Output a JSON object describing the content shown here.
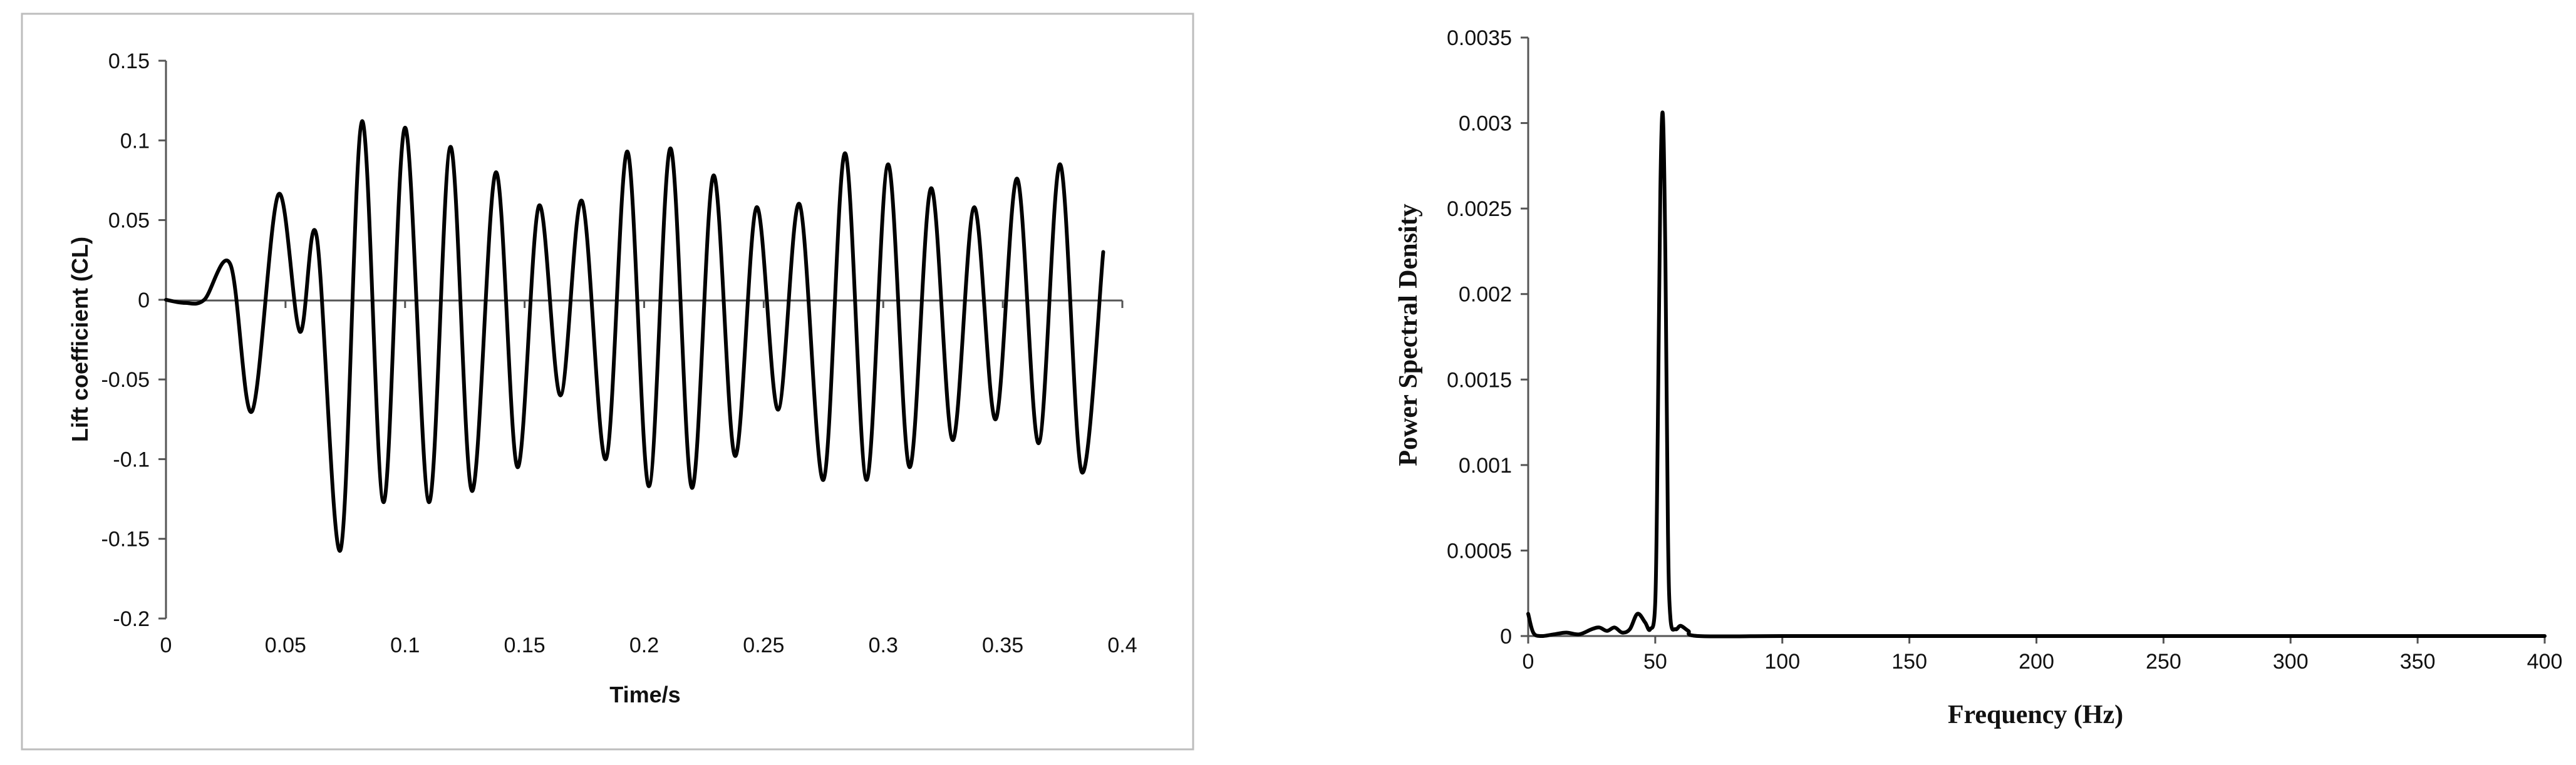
{
  "chart_data": [
    {
      "type": "line",
      "title": "",
      "xlabel": "Time/s",
      "ylabel": "Lift coefficient (CL)",
      "xlim": [
        0,
        0.4
      ],
      "ylim": [
        -0.2,
        0.15
      ],
      "xticks": [
        "0",
        "0.05",
        "0.1",
        "0.15",
        "0.2",
        "0.25",
        "0.3",
        "0.35",
        "0.4"
      ],
      "yticks": [
        "-0.2",
        "-0.15",
        "-0.1",
        "-0.05",
        "0",
        "0.05",
        "0.1",
        "0.15"
      ],
      "grid": false,
      "legend": "none",
      "series": [
        {
          "color": "#000000",
          "points": [
            [
              0,
              0
            ],
            [
              0.008,
              -0.002
            ],
            [
              0.016,
              0.0
            ],
            [
              0.027,
              0.022
            ],
            [
              0.036,
              -0.07
            ],
            [
              0.047,
              0.066
            ],
            [
              0.056,
              -0.02
            ],
            [
              0.063,
              0.04
            ],
            [
              0.073,
              -0.157
            ],
            [
              0.082,
              0.112
            ],
            [
              0.091,
              -0.127
            ],
            [
              0.1,
              0.108
            ],
            [
              0.11,
              -0.127
            ],
            [
              0.119,
              0.096
            ],
            [
              0.128,
              -0.12
            ],
            [
              0.138,
              0.08
            ],
            [
              0.147,
              -0.105
            ],
            [
              0.156,
              0.059
            ],
            [
              0.165,
              -0.06
            ],
            [
              0.174,
              0.062
            ],
            [
              0.184,
              -0.1
            ],
            [
              0.193,
              0.093
            ],
            [
              0.202,
              -0.117
            ],
            [
              0.211,
              0.095
            ],
            [
              0.22,
              -0.118
            ],
            [
              0.229,
              0.078
            ],
            [
              0.238,
              -0.098
            ],
            [
              0.247,
              0.058
            ],
            [
              0.256,
              -0.069
            ],
            [
              0.265,
              0.06
            ],
            [
              0.275,
              -0.113
            ],
            [
              0.284,
              0.092
            ],
            [
              0.293,
              -0.113
            ],
            [
              0.302,
              0.085
            ],
            [
              0.311,
              -0.105
            ],
            [
              0.32,
              0.07
            ],
            [
              0.329,
              -0.088
            ],
            [
              0.338,
              0.058
            ],
            [
              0.347,
              -0.075
            ],
            [
              0.356,
              0.076
            ],
            [
              0.365,
              -0.09
            ],
            [
              0.374,
              0.085
            ],
            [
              0.383,
              -0.108
            ],
            [
              0.392,
              0.03
            ]
          ]
        }
      ]
    },
    {
      "type": "line",
      "title": "",
      "xlabel": "Frequency (Hz)",
      "ylabel": "Power Spectral Density",
      "xlim": [
        0,
        400
      ],
      "ylim": [
        0,
        0.0035
      ],
      "xticks": [
        "0",
        "50",
        "100",
        "150",
        "200",
        "250",
        "300",
        "350",
        "400"
      ],
      "yticks": [
        "0",
        "0.0005",
        "0.001",
        "0.0015",
        "0.002",
        "0.0025",
        "0.003",
        "0.0035"
      ],
      "grid": false,
      "legend": "none",
      "series": [
        {
          "color": "#000000",
          "points": [
            [
              0,
              0.00013
            ],
            [
              2,
              2e-05
            ],
            [
              5,
              0.0
            ],
            [
              10,
              1e-05
            ],
            [
              15,
              2e-05
            ],
            [
              20,
              1e-05
            ],
            [
              25,
              4e-05
            ],
            [
              28,
              5e-05
            ],
            [
              31,
              3e-05
            ],
            [
              34,
              5e-05
            ],
            [
              37,
              2e-05
            ],
            [
              40,
              4e-05
            ],
            [
              43,
              0.00013
            ],
            [
              46,
              8e-05
            ],
            [
              48,
              4e-05
            ],
            [
              50,
              0.0002
            ],
            [
              51,
              0.0012
            ],
            [
              52,
              0.0026
            ],
            [
              53,
              0.00305
            ],
            [
              54,
              0.0022
            ],
            [
              55,
              0.0006
            ],
            [
              56,
              0.0001
            ],
            [
              58,
              4e-05
            ],
            [
              60,
              6e-05
            ],
            [
              63,
              3e-05
            ],
            [
              67,
              0.0
            ],
            [
              100,
              0.0
            ],
            [
              150,
              0.0
            ],
            [
              200,
              0.0
            ],
            [
              250,
              0.0
            ],
            [
              300,
              0.0
            ],
            [
              350,
              0.0
            ],
            [
              400,
              0.0
            ]
          ]
        }
      ]
    }
  ]
}
